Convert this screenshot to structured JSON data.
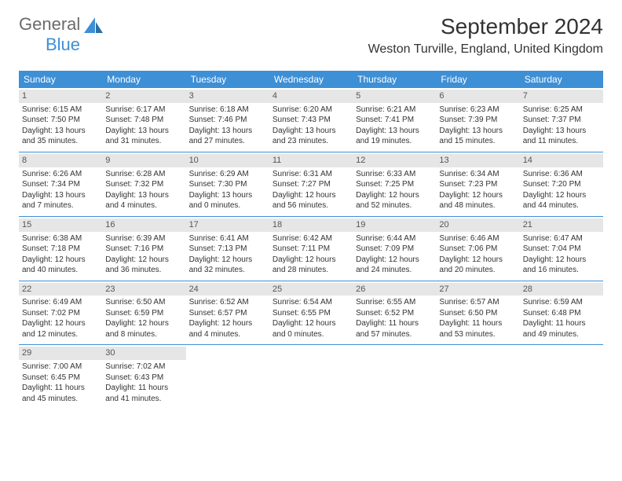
{
  "logo": {
    "part1": "General",
    "part2": "Blue"
  },
  "title": "September 2024",
  "location": "Weston Turville, England, United Kingdom",
  "colors": {
    "header_bg": "#3d8fd6",
    "header_fg": "#ffffff",
    "daynum_bg": "#e6e6e6",
    "border": "#3d8fd6",
    "text": "#333333",
    "logo_gray": "#6b6b6b",
    "logo_blue": "#3d8fd6",
    "background": "#ffffff"
  },
  "typography": {
    "title_fontsize": 28,
    "location_fontsize": 16,
    "header_fontsize": 12,
    "cell_fontsize": 10,
    "daynum_fontsize": 11
  },
  "day_names": [
    "Sunday",
    "Monday",
    "Tuesday",
    "Wednesday",
    "Thursday",
    "Friday",
    "Saturday"
  ],
  "weeks": [
    [
      {
        "n": "1",
        "sr": "Sunrise: 6:15 AM",
        "ss": "Sunset: 7:50 PM",
        "dl": "Daylight: 13 hours and 35 minutes."
      },
      {
        "n": "2",
        "sr": "Sunrise: 6:17 AM",
        "ss": "Sunset: 7:48 PM",
        "dl": "Daylight: 13 hours and 31 minutes."
      },
      {
        "n": "3",
        "sr": "Sunrise: 6:18 AM",
        "ss": "Sunset: 7:46 PM",
        "dl": "Daylight: 13 hours and 27 minutes."
      },
      {
        "n": "4",
        "sr": "Sunrise: 6:20 AM",
        "ss": "Sunset: 7:43 PM",
        "dl": "Daylight: 13 hours and 23 minutes."
      },
      {
        "n": "5",
        "sr": "Sunrise: 6:21 AM",
        "ss": "Sunset: 7:41 PM",
        "dl": "Daylight: 13 hours and 19 minutes."
      },
      {
        "n": "6",
        "sr": "Sunrise: 6:23 AM",
        "ss": "Sunset: 7:39 PM",
        "dl": "Daylight: 13 hours and 15 minutes."
      },
      {
        "n": "7",
        "sr": "Sunrise: 6:25 AM",
        "ss": "Sunset: 7:37 PM",
        "dl": "Daylight: 13 hours and 11 minutes."
      }
    ],
    [
      {
        "n": "8",
        "sr": "Sunrise: 6:26 AM",
        "ss": "Sunset: 7:34 PM",
        "dl": "Daylight: 13 hours and 7 minutes."
      },
      {
        "n": "9",
        "sr": "Sunrise: 6:28 AM",
        "ss": "Sunset: 7:32 PM",
        "dl": "Daylight: 13 hours and 4 minutes."
      },
      {
        "n": "10",
        "sr": "Sunrise: 6:29 AM",
        "ss": "Sunset: 7:30 PM",
        "dl": "Daylight: 13 hours and 0 minutes."
      },
      {
        "n": "11",
        "sr": "Sunrise: 6:31 AM",
        "ss": "Sunset: 7:27 PM",
        "dl": "Daylight: 12 hours and 56 minutes."
      },
      {
        "n": "12",
        "sr": "Sunrise: 6:33 AM",
        "ss": "Sunset: 7:25 PM",
        "dl": "Daylight: 12 hours and 52 minutes."
      },
      {
        "n": "13",
        "sr": "Sunrise: 6:34 AM",
        "ss": "Sunset: 7:23 PM",
        "dl": "Daylight: 12 hours and 48 minutes."
      },
      {
        "n": "14",
        "sr": "Sunrise: 6:36 AM",
        "ss": "Sunset: 7:20 PM",
        "dl": "Daylight: 12 hours and 44 minutes."
      }
    ],
    [
      {
        "n": "15",
        "sr": "Sunrise: 6:38 AM",
        "ss": "Sunset: 7:18 PM",
        "dl": "Daylight: 12 hours and 40 minutes."
      },
      {
        "n": "16",
        "sr": "Sunrise: 6:39 AM",
        "ss": "Sunset: 7:16 PM",
        "dl": "Daylight: 12 hours and 36 minutes."
      },
      {
        "n": "17",
        "sr": "Sunrise: 6:41 AM",
        "ss": "Sunset: 7:13 PM",
        "dl": "Daylight: 12 hours and 32 minutes."
      },
      {
        "n": "18",
        "sr": "Sunrise: 6:42 AM",
        "ss": "Sunset: 7:11 PM",
        "dl": "Daylight: 12 hours and 28 minutes."
      },
      {
        "n": "19",
        "sr": "Sunrise: 6:44 AM",
        "ss": "Sunset: 7:09 PM",
        "dl": "Daylight: 12 hours and 24 minutes."
      },
      {
        "n": "20",
        "sr": "Sunrise: 6:46 AM",
        "ss": "Sunset: 7:06 PM",
        "dl": "Daylight: 12 hours and 20 minutes."
      },
      {
        "n": "21",
        "sr": "Sunrise: 6:47 AM",
        "ss": "Sunset: 7:04 PM",
        "dl": "Daylight: 12 hours and 16 minutes."
      }
    ],
    [
      {
        "n": "22",
        "sr": "Sunrise: 6:49 AM",
        "ss": "Sunset: 7:02 PM",
        "dl": "Daylight: 12 hours and 12 minutes."
      },
      {
        "n": "23",
        "sr": "Sunrise: 6:50 AM",
        "ss": "Sunset: 6:59 PM",
        "dl": "Daylight: 12 hours and 8 minutes."
      },
      {
        "n": "24",
        "sr": "Sunrise: 6:52 AM",
        "ss": "Sunset: 6:57 PM",
        "dl": "Daylight: 12 hours and 4 minutes."
      },
      {
        "n": "25",
        "sr": "Sunrise: 6:54 AM",
        "ss": "Sunset: 6:55 PM",
        "dl": "Daylight: 12 hours and 0 minutes."
      },
      {
        "n": "26",
        "sr": "Sunrise: 6:55 AM",
        "ss": "Sunset: 6:52 PM",
        "dl": "Daylight: 11 hours and 57 minutes."
      },
      {
        "n": "27",
        "sr": "Sunrise: 6:57 AM",
        "ss": "Sunset: 6:50 PM",
        "dl": "Daylight: 11 hours and 53 minutes."
      },
      {
        "n": "28",
        "sr": "Sunrise: 6:59 AM",
        "ss": "Sunset: 6:48 PM",
        "dl": "Daylight: 11 hours and 49 minutes."
      }
    ],
    [
      {
        "n": "29",
        "sr": "Sunrise: 7:00 AM",
        "ss": "Sunset: 6:45 PM",
        "dl": "Daylight: 11 hours and 45 minutes."
      },
      {
        "n": "30",
        "sr": "Sunrise: 7:02 AM",
        "ss": "Sunset: 6:43 PM",
        "dl": "Daylight: 11 hours and 41 minutes."
      },
      null,
      null,
      null,
      null,
      null
    ]
  ]
}
